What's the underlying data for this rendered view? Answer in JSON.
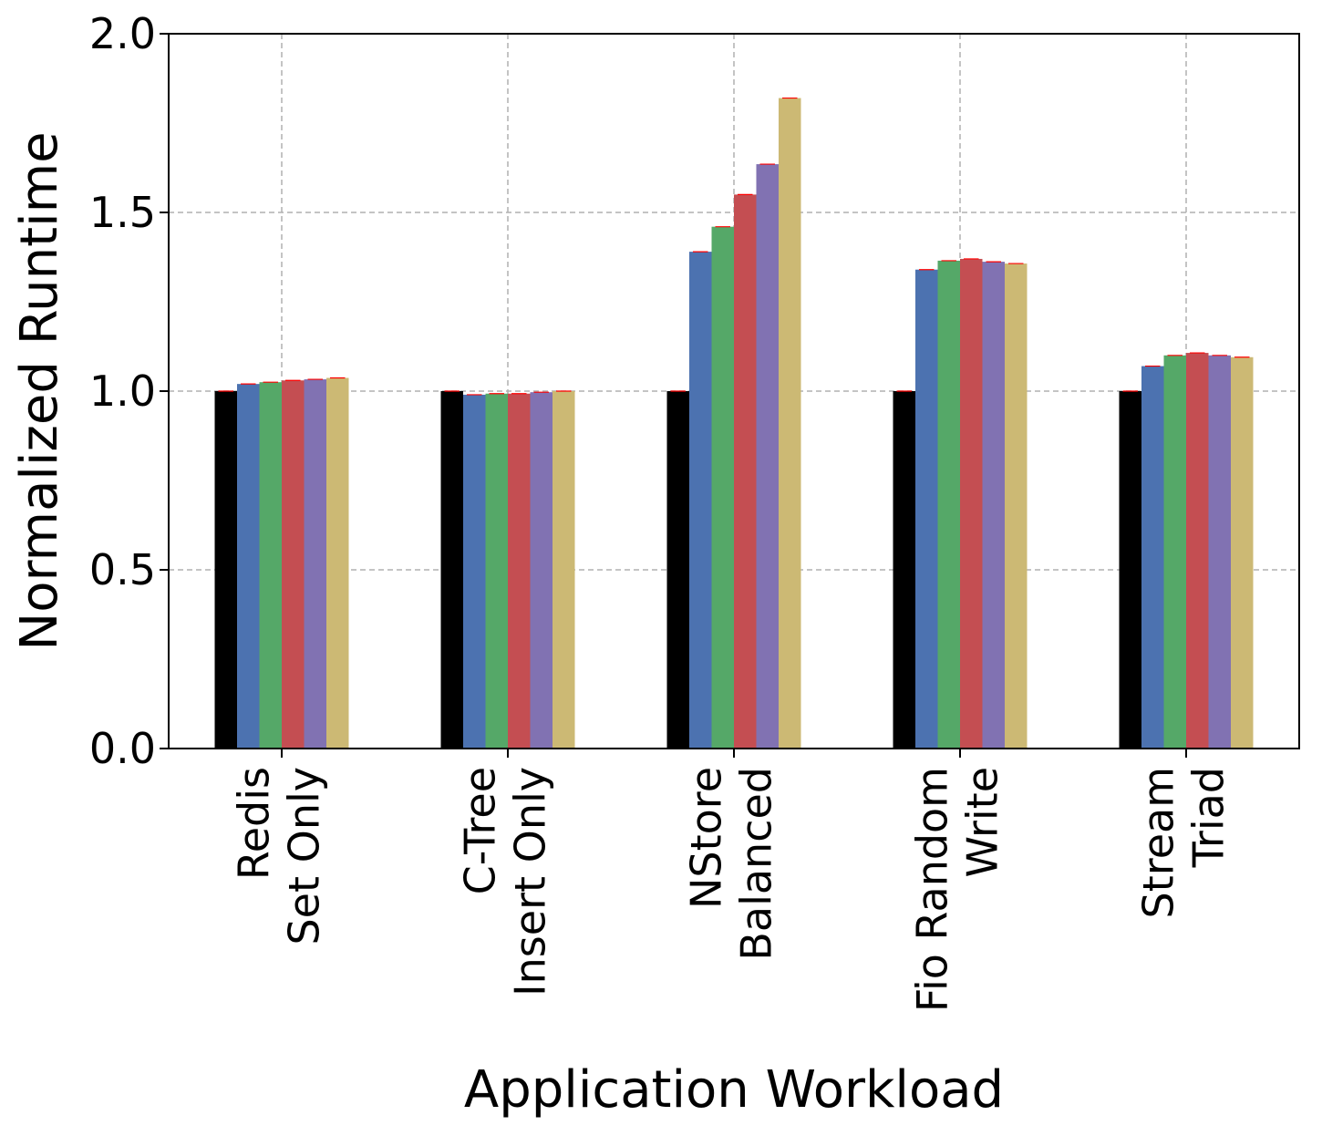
{
  "chart_data": {
    "type": "bar",
    "title": "",
    "xlabel": "Application Workload",
    "ylabel": "Normalized Runtime",
    "ylim": [
      0,
      2.0
    ],
    "yticks": [
      "0.0",
      "0.5",
      "1.0",
      "1.5",
      "2.0"
    ],
    "ytick_values": [
      0,
      0.5,
      1.0,
      1.5,
      2.0
    ],
    "grid": true,
    "legend": "none",
    "categories": [
      [
        "Redis",
        "Set Only"
      ],
      [
        "C-Tree",
        "Insert Only"
      ],
      [
        "NStore",
        "Balanced"
      ],
      [
        "Fio Random",
        "Write"
      ],
      [
        "Stream",
        "Triad"
      ]
    ],
    "series": [
      {
        "color": "#000000",
        "values": [
          1.0,
          1.0,
          1.0,
          1.0,
          1.0
        ]
      },
      {
        "color": "#4c72b0",
        "values": [
          1.02,
          0.99,
          1.39,
          1.34,
          1.07
        ]
      },
      {
        "color": "#55a868",
        "values": [
          1.025,
          0.993,
          1.46,
          1.365,
          1.1
        ]
      },
      {
        "color": "#c44e52",
        "values": [
          1.03,
          0.993,
          1.55,
          1.37,
          1.107
        ]
      },
      {
        "color": "#8172b2",
        "values": [
          1.033,
          0.997,
          1.635,
          1.362,
          1.1
        ]
      },
      {
        "color": "#ccb974",
        "values": [
          1.037,
          1.0,
          1.82,
          1.357,
          1.095
        ]
      }
    ]
  }
}
